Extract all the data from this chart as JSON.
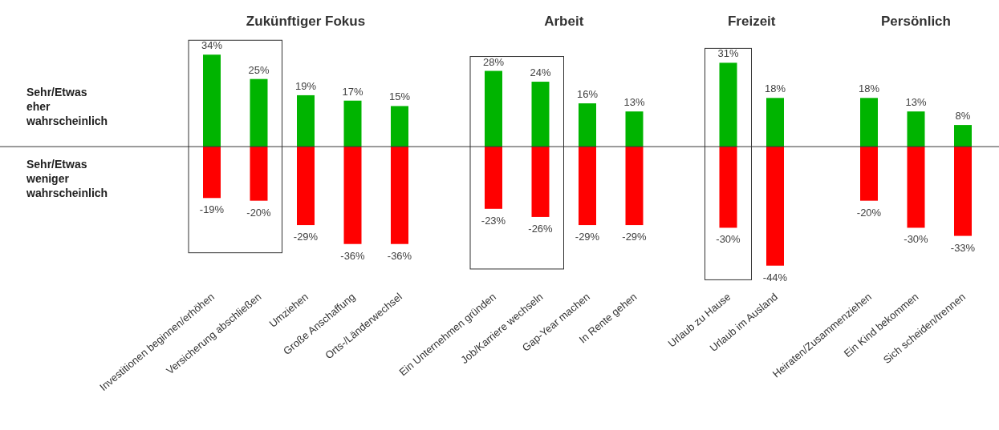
{
  "chart_data": {
    "type": "bar",
    "stacked": true,
    "tick_labels": "x",
    "categories": [
      "Investitionen beginnen/erhöhen",
      "Versicherung abschließen",
      "Umziehen",
      "Große Anschaffung",
      "Orts-/Länderwechsel",
      null,
      "Ein Unternehmen gründen",
      "Job/Karriere wechseln",
      "Gap-Year machen",
      "In Rente gehen",
      null,
      "Urlaub zu Hause",
      "Urlaub im Ausland",
      null,
      "Heiraten/Zusammenziehen",
      "Ein Kind bekommen",
      "Sich scheiden/trennen"
    ],
    "series": [
      {
        "color": "#00b400",
        "values": [
          34,
          25,
          19,
          17,
          15,
          null,
          28,
          24,
          16,
          13,
          null,
          31,
          18,
          null,
          18,
          13,
          8
        ],
        "value_labels": [
          "34%",
          "25%",
          "19%",
          "17%",
          "15%",
          null,
          "28%",
          "24%",
          "16%",
          "13%",
          null,
          "31%",
          "18%",
          null,
          "18%",
          "13%",
          "8%"
        ]
      },
      {
        "color": "#ff0000",
        "values": [
          -19,
          -20,
          -29,
          -36,
          -36,
          null,
          -23,
          -26,
          -29,
          -29,
          null,
          -30,
          -44,
          null,
          -20,
          -30,
          -33
        ],
        "value_labels": [
          "-19%",
          "-20%",
          "-29%",
          "-36%",
          "-36%",
          null,
          "-23%",
          "-26%",
          "-29%",
          "-29%",
          null,
          "-30%",
          "-44%",
          null,
          "-20%",
          "-30%",
          "-33%"
        ]
      }
    ],
    "ylim": [
      -50,
      40
    ],
    "annotations": [
      "Zukünftiger Fokus",
      "Arbeit",
      "Freizeit",
      "Persönlich",
      "Sehr/Etwas eher wahrscheinlich",
      "Sehr/Etwas weniger wahrscheinlich"
    ]
  }
}
